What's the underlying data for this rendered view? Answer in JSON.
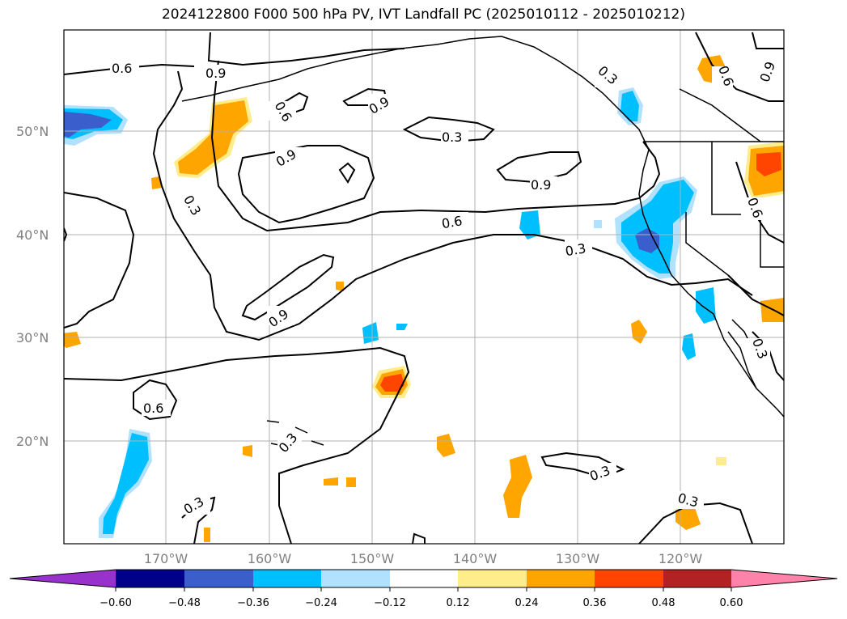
{
  "title": "2024122800 F000 500 hPa PV, IVT Landfall PC (2025010112 - 2025010212)",
  "lat_labels": [
    "50°N",
    "40°N",
    "30°N",
    "20°N"
  ],
  "lon_labels": [
    "170°W",
    "160°W",
    "150°W",
    "140°W",
    "130°W",
    "120°W"
  ],
  "contour_labels": [
    "0.6",
    "0.6",
    "0.9",
    "0.3",
    "0.3",
    "0.9",
    "0.9",
    "0.3",
    "0.6",
    "0.3",
    "0.9",
    "0.6",
    "0.3",
    "0.3",
    "0.3",
    "0.3",
    "0.3",
    "0.6",
    "0.9",
    "0.9",
    "0.6"
  ],
  "colorbar": {
    "ticks": [
      "−0.60",
      "−0.48",
      "−0.36",
      "−0.24",
      "−0.12",
      "0.12",
      "0.24",
      "0.36",
      "0.48",
      "0.60"
    ],
    "colors": [
      "#9932CC",
      "#00008B",
      "#3A5FCD",
      "#00BFFF",
      "#B0E2FF",
      "#FFFFFF",
      "#FFEC8B",
      "#FFA500",
      "#FF4500",
      "#B22222",
      "#FF82AB"
    ]
  },
  "chart_data": {
    "type": "heatmap",
    "title": "2024122800 F000 500 hPa PV, IVT Landfall PC (2025010112 - 2025010212)",
    "x_ticks": [
      "170°W",
      "160°W",
      "150°W",
      "140°W",
      "130°W",
      "120°W"
    ],
    "y_ticks": [
      "50°N",
      "40°N",
      "30°N",
      "20°N"
    ],
    "contour_levels": [
      0.3,
      0.6,
      0.9
    ],
    "fill_levels": [
      -0.6,
      -0.48,
      -0.36,
      -0.24,
      -0.12,
      0.12,
      0.24,
      0.36,
      0.48,
      0.6
    ],
    "grid": true
  }
}
